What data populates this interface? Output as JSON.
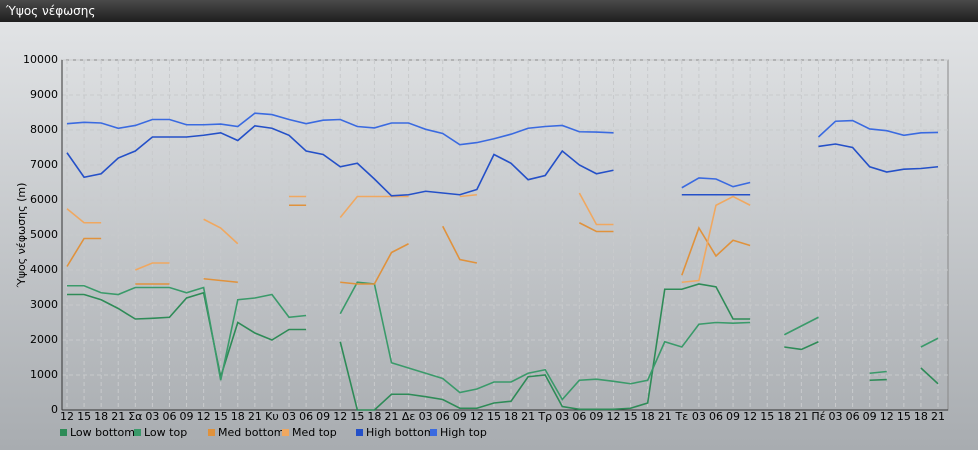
{
  "window": {
    "title": "Ύψος νέφωσης"
  },
  "chart_data": {
    "type": "line",
    "y_label": "Ύψος νέφωσης (m)",
    "categories": [
      "12",
      "15",
      "18",
      "21",
      "Σα",
      "03",
      "06",
      "09",
      "12",
      "15",
      "18",
      "21",
      "Κυ",
      "03",
      "06",
      "09",
      "12",
      "15",
      "18",
      "21",
      "Δε",
      "03",
      "06",
      "09",
      "12",
      "15",
      "18",
      "21",
      "Τρ",
      "03",
      "06",
      "09",
      "12",
      "15",
      "18",
      "21",
      "Τε",
      "03",
      "06",
      "09",
      "12",
      "15",
      "18",
      "21",
      "Πέ",
      "03",
      "06",
      "09",
      "12",
      "15",
      "18",
      "21"
    ],
    "ylim": [
      0,
      10000
    ],
    "yticks": [
      0,
      1000,
      2000,
      3000,
      4000,
      5000,
      6000,
      7000,
      8000,
      9000,
      10000
    ],
    "grid": true,
    "series": [
      {
        "name": "Low bottom",
        "color": "#2e8b57",
        "values": [
          3300,
          3300,
          3150,
          2900,
          2600,
          2620,
          2650,
          3200,
          3350,
          950,
          2500,
          2200,
          2000,
          2300,
          2300,
          null,
          1950,
          0,
          0,
          450,
          450,
          380,
          300,
          50,
          50,
          200,
          250,
          950,
          1000,
          100,
          20,
          20,
          20,
          50,
          200,
          3450,
          3450,
          3600,
          3520,
          2600,
          2600,
          null,
          1800,
          1730,
          1950,
          null,
          null,
          850,
          870,
          null,
          1200,
          750
        ]
      },
      {
        "name": "Low top",
        "color": "#3a9a6a",
        "values": [
          3550,
          3550,
          3350,
          3300,
          3500,
          3500,
          3500,
          3350,
          3500,
          850,
          3150,
          3200,
          3300,
          2650,
          2700,
          null,
          2750,
          3650,
          3600,
          1350,
          1200,
          1050,
          900,
          500,
          600,
          800,
          800,
          1050,
          1150,
          300,
          850,
          880,
          820,
          750,
          850,
          1950,
          1800,
          2450,
          2500,
          2480,
          2500,
          null,
          2150,
          2400,
          2650,
          null,
          null,
          1050,
          1100,
          null,
          1800,
          2050
        ]
      },
      {
        "name": "Med bottom",
        "color": "#e0923c",
        "values": [
          4100,
          4900,
          4900,
          null,
          3600,
          3600,
          3600,
          null,
          3750,
          3700,
          3650,
          null,
          null,
          5850,
          5850,
          null,
          3650,
          3600,
          3600,
          4500,
          4750,
          null,
          5250,
          4300,
          4200,
          null,
          null,
          null,
          null,
          null,
          5350,
          5100,
          5100,
          null,
          null,
          null,
          3850,
          5200,
          4400,
          4850,
          4700,
          null,
          null,
          null,
          null,
          null,
          null,
          null,
          null,
          null,
          null,
          null
        ]
      },
      {
        "name": "Med top",
        "color": "#f0a860",
        "values": [
          5750,
          5350,
          5350,
          null,
          4000,
          4200,
          4200,
          null,
          5450,
          5200,
          4750,
          null,
          null,
          6100,
          6100,
          null,
          5500,
          6100,
          6100,
          6100,
          6100,
          null,
          null,
          6100,
          6150,
          null,
          null,
          null,
          null,
          null,
          6200,
          5300,
          5300,
          null,
          null,
          null,
          3650,
          3700,
          5850,
          6100,
          5850,
          null,
          null,
          null,
          null,
          null,
          null,
          null,
          null,
          null,
          null,
          null
        ]
      },
      {
        "name": "High bottom",
        "color": "#2450c8",
        "values": [
          7350,
          6650,
          6750,
          7200,
          7400,
          7800,
          7800,
          7800,
          7850,
          7920,
          7700,
          8120,
          8050,
          7850,
          7400,
          7300,
          6950,
          7050,
          6600,
          6120,
          6150,
          6250,
          6200,
          6150,
          6300,
          7300,
          7050,
          6580,
          6700,
          7400,
          7000,
          6750,
          6850,
          null,
          null,
          null,
          6150,
          6150,
          6150,
          6150,
          6150,
          null,
          null,
          null,
          7530,
          7600,
          7500,
          6950,
          6800,
          6880,
          6900,
          6950
        ]
      },
      {
        "name": "High top",
        "color": "#3a6ae0",
        "values": [
          8180,
          8220,
          8200,
          8050,
          8130,
          8300,
          8300,
          8150,
          8150,
          8170,
          8100,
          8480,
          8440,
          8300,
          8180,
          8280,
          8300,
          8100,
          8060,
          8200,
          8200,
          8020,
          7900,
          7580,
          7640,
          7750,
          7880,
          8050,
          8100,
          8130,
          7950,
          7940,
          7920,
          null,
          null,
          null,
          6350,
          6630,
          6600,
          6380,
          6500,
          null,
          null,
          null,
          7800,
          8250,
          8270,
          8030,
          7980,
          7850,
          7920,
          7930
        ]
      }
    ]
  }
}
